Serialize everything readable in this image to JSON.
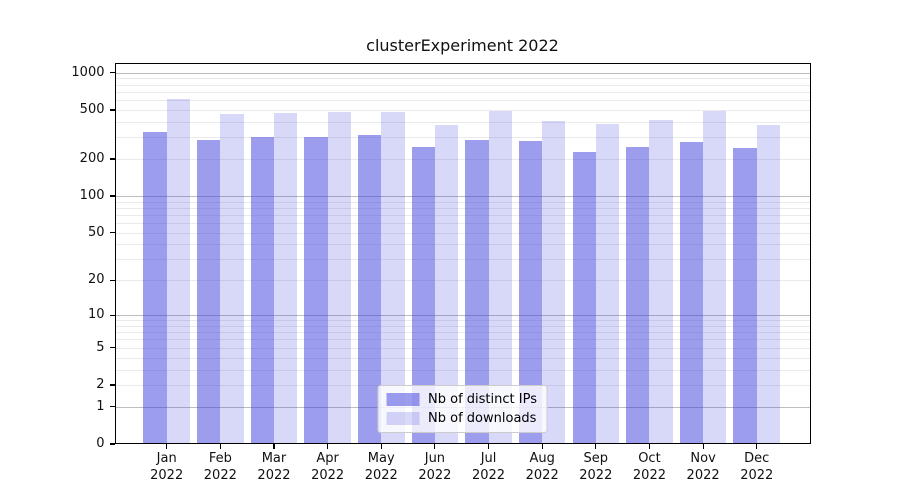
{
  "chart_data": {
    "type": "bar",
    "title": "clusterExperiment 2022",
    "y_scale": "log1p",
    "ylim": [
      0,
      1200
    ],
    "grid": true,
    "legend_position": "lower center",
    "year": "2022",
    "categories": [
      "Jan",
      "Feb",
      "Mar",
      "Apr",
      "May",
      "Jun",
      "Jul",
      "Aug",
      "Sep",
      "Oct",
      "Nov",
      "Dec"
    ],
    "series": [
      {
        "name": "Nb of distinct IPs",
        "color": "rgba(60,60,220,0.5)",
        "values": [
          330,
          287,
          303,
          300,
          312,
          251,
          287,
          278,
          230,
          251,
          273,
          245
        ]
      },
      {
        "name": "Nb of downloads",
        "color": "rgba(60,60,220,0.2)",
        "values": [
          618,
          468,
          474,
          480,
          482,
          381,
          494,
          407,
          382,
          412,
          490,
          375
        ]
      }
    ],
    "y_ticks": [
      0,
      1,
      2,
      5,
      10,
      20,
      50,
      100,
      200,
      500,
      1000
    ],
    "major_gridlines": [
      1,
      10,
      100,
      1000
    ],
    "minor_gridlines": [
      2,
      3,
      4,
      5,
      6,
      7,
      8,
      9,
      20,
      30,
      40,
      50,
      60,
      70,
      80,
      90,
      200,
      300,
      400,
      500,
      600,
      700,
      800,
      900
    ]
  },
  "colors": {
    "background": "#ffffff",
    "bar_distinct_ips": "rgba(60,60,220,0.5)",
    "bar_downloads": "rgba(60,60,220,0.2)",
    "grid_major": "#bdbdbd",
    "grid_minor": "#eaeaea",
    "axis": "#000000"
  }
}
